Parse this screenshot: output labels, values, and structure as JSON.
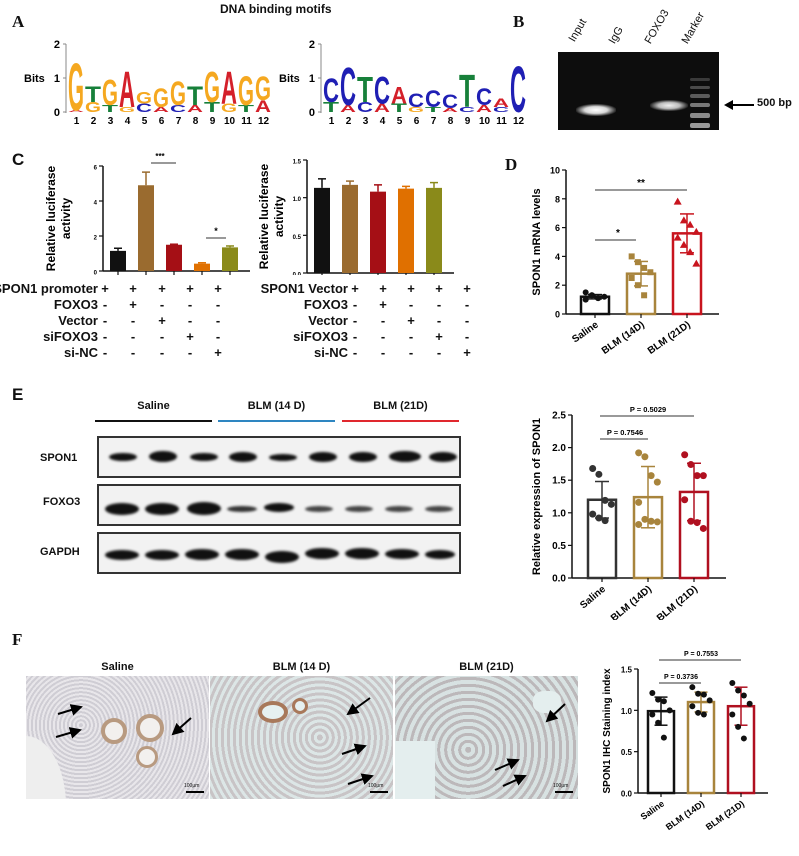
{
  "figure": {
    "panel_labels": [
      "A",
      "B",
      "C",
      "D",
      "E",
      "F"
    ]
  },
  "panelA": {
    "title": "DNA binding motifs",
    "ylabel": "Bits",
    "yticks": [
      "0",
      "1",
      "2"
    ],
    "positions": [
      "1",
      "2",
      "3",
      "4",
      "5",
      "6",
      "7",
      "8",
      "9",
      "10",
      "11",
      "12"
    ],
    "motif1_top": [
      "G",
      "T",
      "G",
      "A",
      "G",
      "G",
      "G",
      "T",
      "G",
      "A",
      "G",
      "G"
    ],
    "motif1_bottom": [
      "A",
      "G",
      "T",
      "G",
      "C",
      "A",
      "C",
      "A",
      "T",
      "G",
      "T",
      "A"
    ],
    "motif2_top": [
      "C",
      "C",
      "T",
      "C",
      "A",
      "C",
      "C",
      "C",
      "T",
      "C",
      "A",
      "C"
    ],
    "motif2_bottom": [
      "T",
      "A",
      "C",
      "A",
      "T",
      "G",
      "T",
      "A",
      "C",
      "A",
      "C",
      "-"
    ],
    "colors": {
      "A": "#d4202a",
      "C": "#1f1fb4",
      "G": "#f5a820",
      "T": "#17803a"
    }
  },
  "panelB": {
    "lanes": [
      "Input",
      "IgG",
      "FOXO3",
      "Marker"
    ],
    "marker_label": "500 bp"
  },
  "panelC": {
    "ylabel_line1": "Relative luciferase",
    "ylabel_line2": "activity",
    "left": {
      "first_row_label": "SPON1 promoter",
      "yticks": [
        "0",
        "2",
        "4",
        "6"
      ],
      "sig": [
        "***",
        "*"
      ]
    },
    "right": {
      "first_row_label": "SPON1 Vector",
      "yticks": [
        "0.0",
        "0.5",
        "1.0",
        "1.5"
      ]
    },
    "row_labels": [
      "FOXO3",
      "Vector",
      "siFOXO3",
      "si-NC"
    ],
    "rows": [
      [
        "+",
        "+",
        "+",
        "+",
        "+"
      ],
      [
        "-",
        "+",
        "-",
        "-",
        "-"
      ],
      [
        "-",
        "-",
        "+",
        "-",
        "-"
      ],
      [
        "-",
        "-",
        "-",
        "+",
        "-"
      ],
      [
        "-",
        "-",
        "-",
        "-",
        "+"
      ]
    ]
  },
  "panelD": {
    "ylabel": "SPON1 mRNA levels",
    "yticks": [
      "0",
      "2",
      "4",
      "6",
      "8",
      "10"
    ],
    "categories": [
      "Saline",
      "BLM (14D)",
      "BLM (21D)"
    ],
    "sig": [
      "*",
      "**"
    ]
  },
  "panelE": {
    "groups": [
      "Saline",
      "BLM (14 D)",
      "BLM (21D)"
    ],
    "group_colors": [
      "#111111",
      "#2e86c1",
      "#e0282e"
    ],
    "blots": [
      "SPON1",
      "FOXO3",
      "GAPDH"
    ],
    "chart": {
      "ylabel": "Relative expression of SPON1",
      "yticks": [
        "0.0",
        "0.5",
        "1.0",
        "1.5",
        "2.0",
        "2.5"
      ],
      "categories": [
        "Saline",
        "BLM (14D)",
        "BLM (21D)"
      ],
      "p1": "P = 0.7546",
      "p2": "P = 0.5029"
    }
  },
  "panelF": {
    "images": [
      "Saline",
      "BLM (14 D)",
      "BLM (21D)"
    ],
    "scale_bar": "100μm",
    "chart": {
      "ylabel": "SPON1 IHC Staining index",
      "yticks": [
        "0.0",
        "0.5",
        "1.0",
        "1.5"
      ],
      "categories": [
        "Saline",
        "BLM (14D)",
        "BLM (21D)"
      ],
      "p1": "P = 0.3736",
      "p2": "P = 0.7553"
    }
  },
  "chart_data": [
    {
      "id": "C-left",
      "type": "bar",
      "title": "",
      "xlabel": "",
      "ylabel": "Relative luciferase activity",
      "categories": [
        "SPON1 promoter",
        "+FOXO3",
        "+Vector",
        "+siFOXO3",
        "+si-NC"
      ],
      "values": [
        1.15,
        4.9,
        1.5,
        0.42,
        1.35
      ],
      "errors": [
        0.15,
        0.75,
        0.03,
        0.05,
        0.08
      ],
      "colors": [
        "#111111",
        "#9a6b2f",
        "#a50f15",
        "#e07000",
        "#8a8a1a"
      ],
      "ylim": [
        0,
        6
      ],
      "annotations": [
        {
          "between": [
            1,
            2
          ],
          "label": "***"
        },
        {
          "between": [
            3,
            4
          ],
          "label": "*"
        }
      ],
      "grid": false
    },
    {
      "id": "C-right",
      "type": "bar",
      "title": "",
      "xlabel": "",
      "ylabel": "Relative luciferase activity",
      "categories": [
        "SPON1 Vector",
        "+FOXO3",
        "+Vector",
        "+siFOXO3",
        "+si-NC"
      ],
      "values": [
        1.13,
        1.17,
        1.08,
        1.12,
        1.13
      ],
      "errors": [
        0.12,
        0.05,
        0.09,
        0.03,
        0.07
      ],
      "colors": [
        "#111111",
        "#9a6b2f",
        "#a50f15",
        "#e07000",
        "#8a8a1a"
      ],
      "ylim": [
        0,
        1.5
      ],
      "grid": false
    },
    {
      "id": "D",
      "type": "bar",
      "title": "",
      "xlabel": "",
      "ylabel": "SPON1 mRNA levels",
      "categories": [
        "Saline",
        "BLM (14D)",
        "BLM (21D)"
      ],
      "values": [
        1.2,
        2.8,
        5.6
      ],
      "errors": [
        0.15,
        0.85,
        1.35
      ],
      "points": [
        [
          1.5,
          1.3,
          1.1,
          1.2,
          1.0,
          1.3,
          1.1
        ],
        [
          4.0,
          3.6,
          3.2,
          2.9,
          2.5,
          2.0,
          1.3
        ],
        [
          7.8,
          6.5,
          6.2,
          5.7,
          5.3,
          4.8,
          4.3,
          3.5
        ]
      ],
      "edge_colors": [
        "#111111",
        "#a8843c",
        "#c8141e"
      ],
      "ylim": [
        0,
        10
      ],
      "annotations": [
        {
          "between": [
            0,
            1
          ],
          "label": "*"
        },
        {
          "between": [
            0,
            2
          ],
          "label": "**"
        }
      ],
      "grid": false
    },
    {
      "id": "E",
      "type": "bar",
      "title": "",
      "xlabel": "",
      "ylabel": "Relative expression of SPON1",
      "categories": [
        "Saline",
        "BLM (14D)",
        "BLM (21D)"
      ],
      "values": [
        1.2,
        1.24,
        1.32
      ],
      "errors": [
        0.28,
        0.47,
        0.44
      ],
      "points": [
        [
          1.68,
          1.59,
          1.19,
          1.13,
          0.98,
          0.92,
          0.88
        ],
        [
          1.92,
          1.86,
          1.57,
          1.47,
          1.16,
          0.9,
          0.87,
          0.86,
          0.82
        ],
        [
          1.89,
          1.74,
          1.57,
          1.57,
          1.2,
          0.87,
          0.85,
          0.76
        ]
      ],
      "edge_colors": [
        "#333333",
        "#a8843c",
        "#b01020"
      ],
      "ylim": [
        0,
        2.5
      ],
      "annotations": [
        {
          "between": [
            0,
            1
          ],
          "label": "P = 0.7546"
        },
        {
          "between": [
            0,
            2
          ],
          "label": "P = 0.5029"
        }
      ],
      "grid": false
    },
    {
      "id": "F",
      "type": "bar",
      "title": "",
      "xlabel": "",
      "ylabel": "SPON1 IHC Staining index",
      "categories": [
        "Saline",
        "BLM (14D)",
        "BLM (21D)"
      ],
      "values": [
        0.99,
        1.1,
        1.05
      ],
      "errors": [
        0.17,
        0.12,
        0.23
      ],
      "points": [
        [
          1.21,
          1.13,
          1.11,
          1.0,
          0.95,
          0.85,
          0.67
        ],
        [
          1.28,
          1.2,
          1.19,
          1.12,
          1.05,
          0.97,
          0.95
        ],
        [
          1.33,
          1.24,
          1.18,
          1.08,
          0.95,
          0.8,
          0.66
        ]
      ],
      "edge_colors": [
        "#111111",
        "#a8843c",
        "#b01020"
      ],
      "ylim": [
        0,
        1.5
      ],
      "annotations": [
        {
          "between": [
            0,
            1
          ],
          "label": "P = 0.3736"
        },
        {
          "between": [
            0,
            2
          ],
          "label": "P = 0.7553"
        }
      ],
      "grid": false
    }
  ]
}
